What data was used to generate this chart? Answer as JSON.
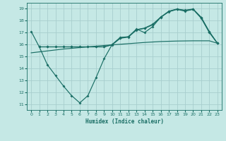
{
  "xlabel": "Humidex (Indice chaleur)",
  "bg_color": "#c5e8e5",
  "line_color": "#1a6e65",
  "grid_color": "#a8cece",
  "xlim": [
    -0.5,
    23.5
  ],
  "ylim": [
    10.5,
    19.5
  ],
  "xticks": [
    0,
    1,
    2,
    3,
    4,
    5,
    6,
    7,
    8,
    9,
    10,
    11,
    12,
    13,
    14,
    15,
    16,
    17,
    18,
    19,
    20,
    21,
    22,
    23
  ],
  "yticks": [
    11,
    12,
    13,
    14,
    15,
    16,
    17,
    18,
    19
  ],
  "curve_main_x": [
    0,
    1,
    2,
    3,
    4,
    5,
    6,
    7,
    8,
    9,
    10,
    11,
    12,
    13,
    14,
    15,
    16,
    17,
    18,
    19,
    20,
    21,
    22,
    23
  ],
  "curve_main_y": [
    17.1,
    15.8,
    14.3,
    13.4,
    12.5,
    11.7,
    11.1,
    11.7,
    13.2,
    14.8,
    16.0,
    16.6,
    16.65,
    17.3,
    17.0,
    17.5,
    18.3,
    18.75,
    18.95,
    18.8,
    18.95,
    18.2,
    17.0,
    16.1
  ],
  "curve_linear_x": [
    0,
    1,
    2,
    3,
    4,
    5,
    6,
    7,
    8,
    9,
    10,
    11,
    12,
    13,
    14,
    15,
    16,
    17,
    18,
    19,
    20,
    21,
    22,
    23
  ],
  "curve_linear_y": [
    15.3,
    15.38,
    15.46,
    15.54,
    15.62,
    15.68,
    15.74,
    15.8,
    15.86,
    15.92,
    15.97,
    16.02,
    16.07,
    16.12,
    16.17,
    16.21,
    16.25,
    16.27,
    16.29,
    16.3,
    16.31,
    16.31,
    16.31,
    16.1
  ],
  "curve_upper1_x": [
    1,
    2,
    3,
    4,
    5,
    6,
    7,
    8,
    9,
    10,
    11,
    12,
    13,
    14,
    15,
    16,
    17,
    18,
    19,
    20,
    21,
    22,
    23
  ],
  "curve_upper1_y": [
    15.8,
    15.8,
    15.8,
    15.8,
    15.8,
    15.8,
    15.8,
    15.8,
    15.8,
    16.0,
    16.55,
    16.65,
    17.25,
    17.38,
    17.7,
    18.3,
    18.8,
    18.98,
    18.88,
    18.98,
    18.28,
    17.08,
    16.1
  ],
  "curve_upper2_x": [
    1,
    2,
    3,
    4,
    5,
    6,
    7,
    8,
    9,
    10,
    11,
    12,
    13,
    14,
    15,
    16,
    17,
    18,
    19,
    20,
    21,
    22,
    23
  ],
  "curve_upper2_y": [
    15.8,
    15.8,
    15.8,
    15.8,
    15.8,
    15.8,
    15.8,
    15.8,
    15.8,
    15.97,
    16.52,
    16.62,
    17.22,
    17.35,
    17.65,
    18.28,
    18.77,
    18.96,
    18.85,
    18.96,
    18.26,
    17.06,
    16.1
  ]
}
